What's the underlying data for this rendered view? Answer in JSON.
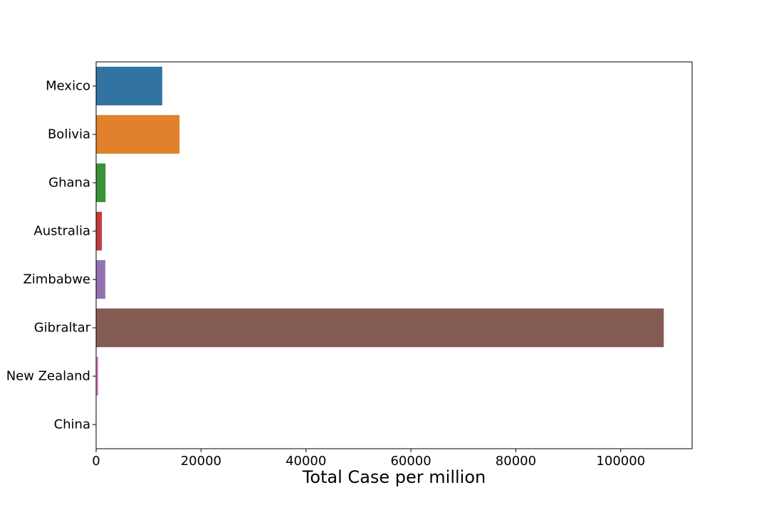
{
  "chart_data": {
    "type": "bar",
    "orientation": "horizontal",
    "categories": [
      "Mexico",
      "Bolivia",
      "Ghana",
      "Australia",
      "Zimbabwe",
      "Gibraltar",
      "New Zealand",
      "China"
    ],
    "values": [
      12600,
      15900,
      1800,
      1100,
      1750,
      108200,
      400,
      60
    ],
    "colors": [
      "#3274a1",
      "#e1812c",
      "#3a923a",
      "#c03d3e",
      "#9372b2",
      "#845b53",
      "#d684bd",
      "#7f7f7f"
    ],
    "xlabel": "Total Case per million",
    "ylabel": "",
    "xlim": [
      0,
      113600
    ],
    "xticks": [
      0,
      20000,
      40000,
      60000,
      80000,
      100000
    ],
    "grid": false
  }
}
